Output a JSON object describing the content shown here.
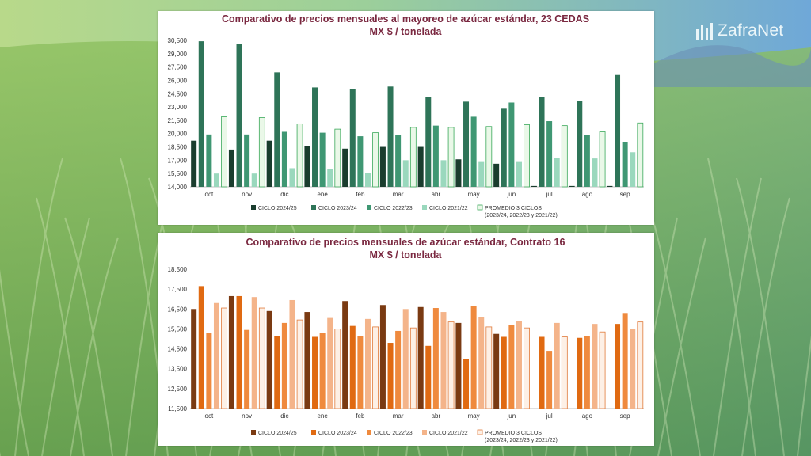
{
  "brand": {
    "name": "ZafraNet"
  },
  "colors": {
    "chart1": [
      "#1a3d2e",
      "#2e7458",
      "#3f9773",
      "#9ad8bd",
      "#eaf8e8"
    ],
    "chart1_avg_stroke": "#3aa85a",
    "chart2": [
      "#7a3a12",
      "#e06a12",
      "#ef8a3e",
      "#f4b48a",
      "#fdf0e6"
    ],
    "chart2_avg_stroke": "#e07a3a"
  },
  "chart_data": [
    {
      "type": "bar",
      "title": "Comparativo de precios mensuales al mayoreo de azúcar estándar, 23 CEDAS",
      "subtitle": "MX $ / tonelada",
      "categories": [
        "oct",
        "nov",
        "dic",
        "ene",
        "feb",
        "mar",
        "abr",
        "may",
        "jun",
        "jul",
        "ago",
        "sep"
      ],
      "ylim": [
        14000,
        30500
      ],
      "yticks": [
        "14,000",
        "15,500",
        "17,000",
        "18,500",
        "20,000",
        "21,500",
        "23,000",
        "24,500",
        "26,000",
        "27,500",
        "29,000",
        "30,500"
      ],
      "ytick_values": [
        14000,
        15500,
        17000,
        18500,
        20000,
        21500,
        23000,
        24500,
        26000,
        27500,
        29000,
        30500
      ],
      "series": [
        {
          "name": "CICLO 2024/25",
          "values": [
            19200,
            18200,
            19200,
            18600,
            18300,
            18500,
            18500,
            17100,
            16600,
            14100,
            14100,
            14100
          ]
        },
        {
          "name": "CICLO 2023/24",
          "values": [
            30400,
            30100,
            26900,
            25200,
            25000,
            25300,
            24100,
            23600,
            22800,
            24100,
            23700,
            26600
          ]
        },
        {
          "name": "CICLO 2022/23",
          "values": [
            19900,
            19900,
            20200,
            20100,
            19700,
            19800,
            20900,
            21900,
            23500,
            21400,
            19800,
            19000
          ]
        },
        {
          "name": "CICLO 2021/22",
          "values": [
            15500,
            15500,
            16100,
            16000,
            15600,
            17000,
            17000,
            16800,
            16800,
            17300,
            17200,
            17900
          ]
        },
        {
          "name": "PROMEDIO 3 CICLOS (2023/24, 2022/23 y 2021/22)",
          "values": [
            21900,
            21800,
            21100,
            20500,
            20100,
            20700,
            20700,
            20800,
            21000,
            20900,
            20200,
            21200
          ]
        }
      ],
      "legend": [
        {
          "label": "CICLO 2024/25"
        },
        {
          "label": "CICLO 2023/24"
        },
        {
          "label": "CICLO 2022/23"
        },
        {
          "label": "CICLO 2021/22"
        },
        {
          "label": "PROMEDIO 3 CICLOS",
          "label2": "(2023/24, 2022/23 y 2021/22)"
        }
      ],
      "legend_position": "bottom",
      "grid": false
    },
    {
      "type": "bar",
      "title": "Comparativo de precios mensuales de azúcar estándar, Contrato 16",
      "subtitle": "MX $ / tonelada",
      "categories": [
        "oct",
        "nov",
        "dic",
        "ene",
        "feb",
        "mar",
        "abr",
        "may",
        "jun",
        "jul",
        "ago",
        "sep"
      ],
      "ylim": [
        11500,
        18500
      ],
      "yticks": [
        "11,500",
        "12,500",
        "13,500",
        "14,500",
        "15,500",
        "16,500",
        "17,500",
        "18,500"
      ],
      "ytick_values": [
        11500,
        12500,
        13500,
        14500,
        15500,
        16500,
        17500,
        18500
      ],
      "series": [
        {
          "name": "CICLO 2024/25",
          "values": [
            16500,
            17150,
            16400,
            16350,
            16900,
            16700,
            16600,
            15800,
            15250,
            11500,
            11500,
            11500
          ]
        },
        {
          "name": "CICLO 2023/24",
          "values": [
            17650,
            17150,
            15150,
            15100,
            15650,
            14800,
            14650,
            14000,
            15100,
            15100,
            15050,
            15750
          ]
        },
        {
          "name": "CICLO 2022/23",
          "values": [
            15300,
            15450,
            15800,
            15300,
            15150,
            15400,
            16550,
            16650,
            15700,
            14400,
            15150,
            16300
          ]
        },
        {
          "name": "CICLO 2021/22",
          "values": [
            16800,
            17100,
            16950,
            16050,
            16000,
            16500,
            16350,
            16100,
            15900,
            15800,
            15750,
            15500
          ]
        },
        {
          "name": "PROMEDIO 3 CICLOS (2023/24, 2022/23 y 2021/22)",
          "values": [
            16550,
            16550,
            15950,
            15500,
            15600,
            15550,
            15850,
            15600,
            15550,
            15100,
            15350,
            15850
          ]
        }
      ],
      "legend": [
        {
          "label": "CICLO 2024/25"
        },
        {
          "label": "CICLO 2023/24"
        },
        {
          "label": "CICLO 2022/23"
        },
        {
          "label": "CICLO 2021/22"
        },
        {
          "label": "PROMEDIO 3 CICLOS",
          "label2": "(2023/24, 2022/23 y 2021/22)"
        }
      ],
      "legend_position": "bottom",
      "grid": false
    }
  ]
}
